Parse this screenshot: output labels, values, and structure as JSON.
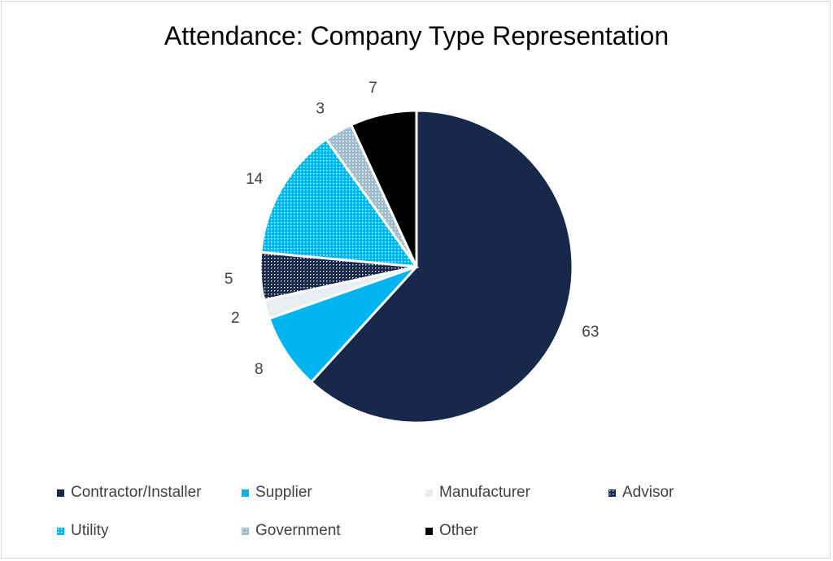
{
  "chart_data": {
    "type": "pie",
    "title": "Attendance: Company Type Representation",
    "categories": [
      "Contractor/Installer",
      "Supplier",
      "Manufacturer",
      "Advisor",
      "Utility",
      "Government",
      "Other"
    ],
    "values": [
      63,
      8,
      2,
      5,
      14,
      3,
      7
    ],
    "data_labels": [
      "63",
      "8",
      "2",
      "5",
      "14",
      "3",
      "7"
    ],
    "colors": [
      "#18284a",
      "#00b4ef",
      "#e9eef2",
      "#18284a",
      "#00b4ef",
      "#9fbccb",
      "#000000"
    ],
    "patterned": [
      false,
      false,
      false,
      true,
      true,
      true,
      false
    ],
    "legend_position": "bottom",
    "start_angle_deg": 0,
    "direction": "clockwise"
  }
}
